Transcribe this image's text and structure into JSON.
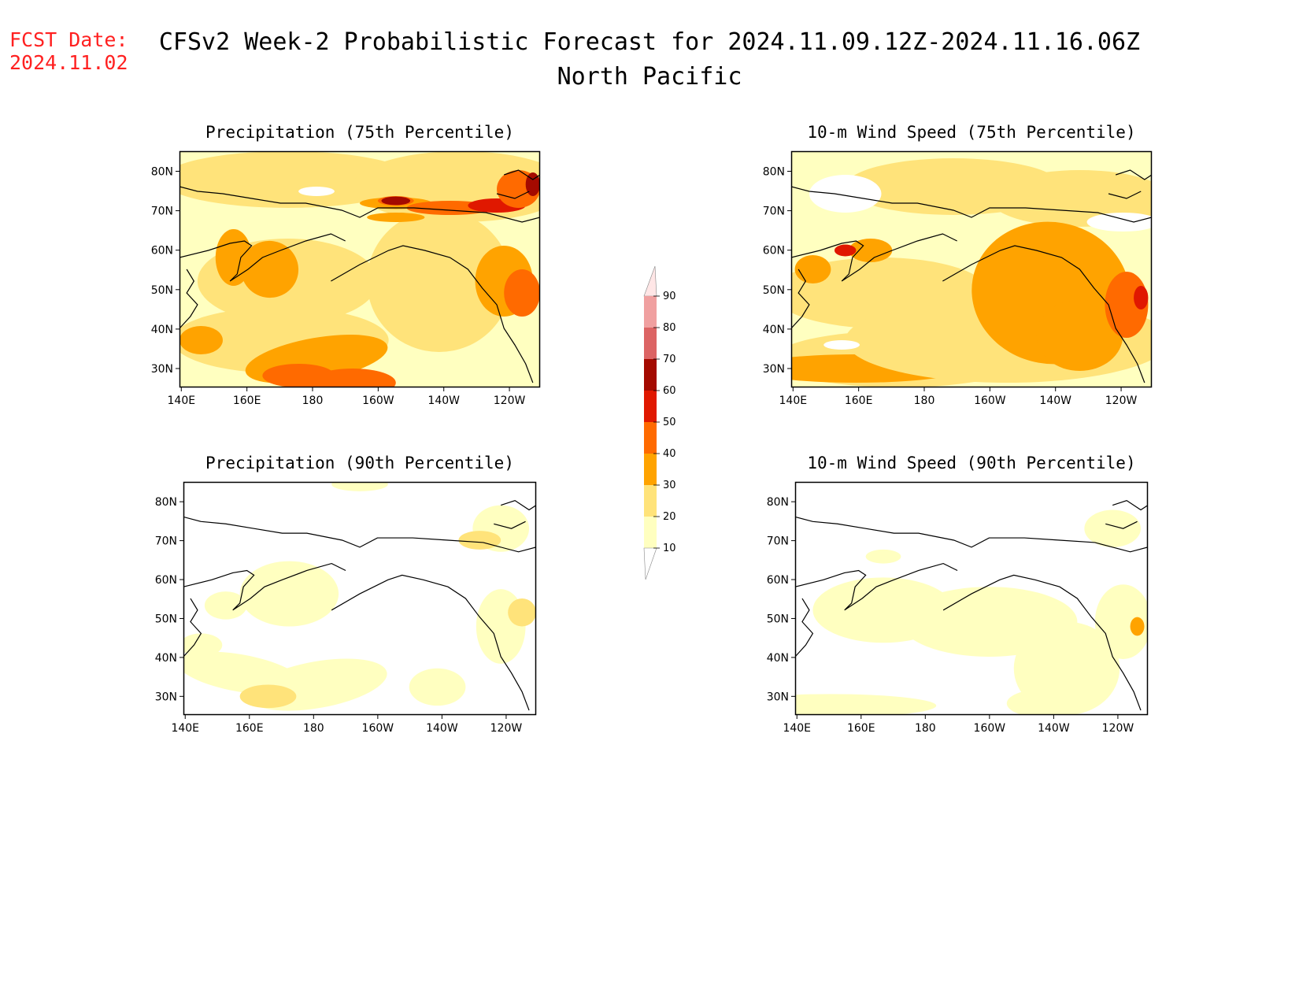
{
  "fcst_date": {
    "label": "FCST Date:",
    "value": "2024.11.02"
  },
  "header": {
    "title_line1": "CFSv2 Week-2 Probabilistic Forecast for 2024.11.09.12Z-2024.11.16.06Z",
    "title_line2": "North Pacific"
  },
  "axes": {
    "lat_labels": [
      "80N",
      "70N",
      "60N",
      "50N",
      "40N",
      "30N"
    ],
    "lon_labels": [
      "140E",
      "160E",
      "180",
      "160W",
      "140W",
      "120W"
    ]
  },
  "panels": [
    {
      "id": "precip75",
      "title": "Precipitation (75th Percentile)"
    },
    {
      "id": "wind75",
      "title": "10-m Wind Speed (75th Percentile)"
    },
    {
      "id": "precip90",
      "title": "Precipitation (90th Percentile)"
    },
    {
      "id": "wind90",
      "title": "10-m Wind Speed (90th Percentile)"
    }
  ],
  "colorbar": {
    "levels": [
      "10",
      "20",
      "30",
      "40",
      "50",
      "60",
      "70",
      "80",
      "90"
    ],
    "colors": [
      "#ffffc0",
      "#ffe37a",
      "#ffa300",
      "#ff6a00",
      "#e01800",
      "#a40a00",
      "#dc6464",
      "#f0a0a0",
      "#ffe6e6"
    ]
  },
  "colors": {
    "c1": "#ffffc0",
    "c2": "#ffe37a",
    "c3": "#ffa300",
    "c4": "#ff6a00",
    "c5": "#e01800",
    "c6": "#a40a00",
    "fcst": "#ff2020"
  }
}
